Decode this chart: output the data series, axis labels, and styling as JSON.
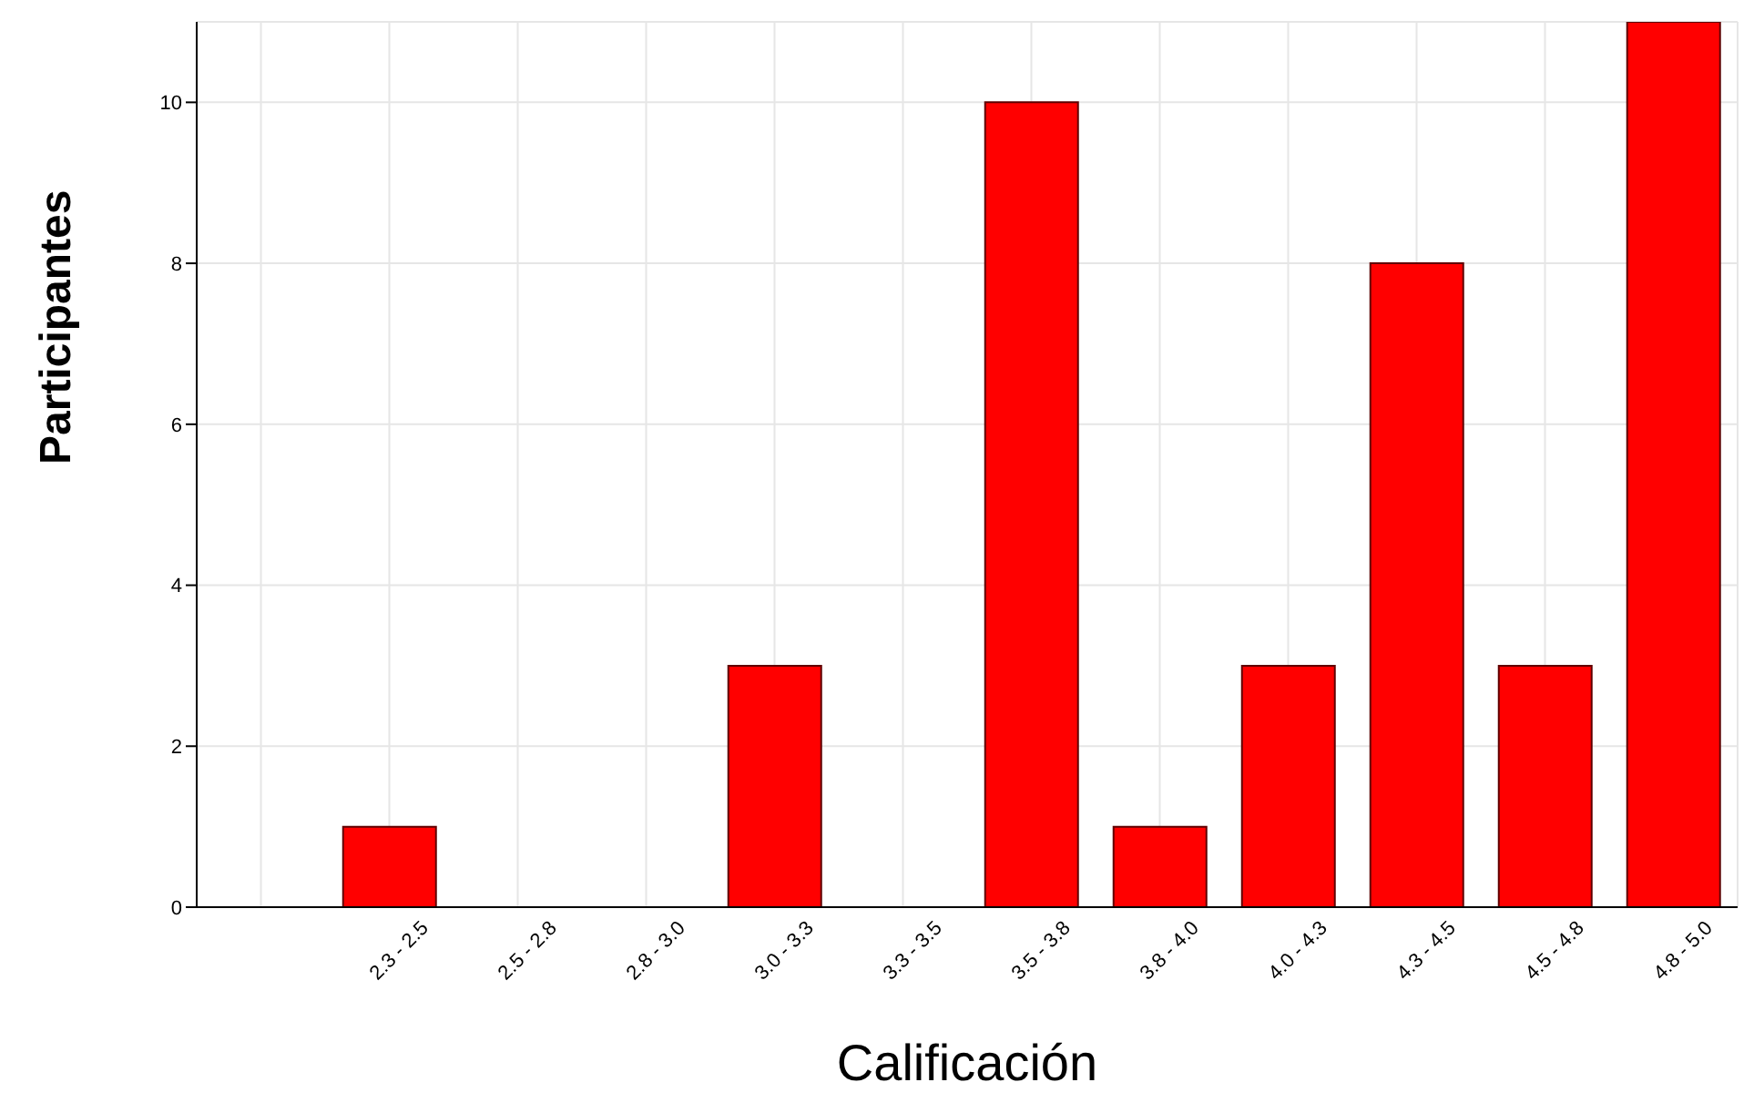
{
  "chart_data": {
    "type": "bar",
    "xlabel": "Calificación",
    "ylabel": "Participantes",
    "categories": [
      null,
      "2.3 - 2.5",
      "2.5 - 2.8",
      "2.8 - 3.0",
      "3.0 - 3.3",
      "3.3 - 3.5",
      "3.5 - 3.8",
      "3.8 - 4.0",
      "4.0 - 4.3",
      "4.3 - 4.5",
      "4.5 - 4.8",
      "4.8 - 5.0"
    ],
    "values": [
      0,
      1,
      0,
      0,
      3,
      0,
      10,
      1,
      3,
      8,
      3,
      11
    ],
    "color": "#ff0000",
    "ylim": [
      0,
      11
    ],
    "yticks": [
      0,
      2,
      4,
      6,
      8,
      10
    ],
    "grid": true
  }
}
